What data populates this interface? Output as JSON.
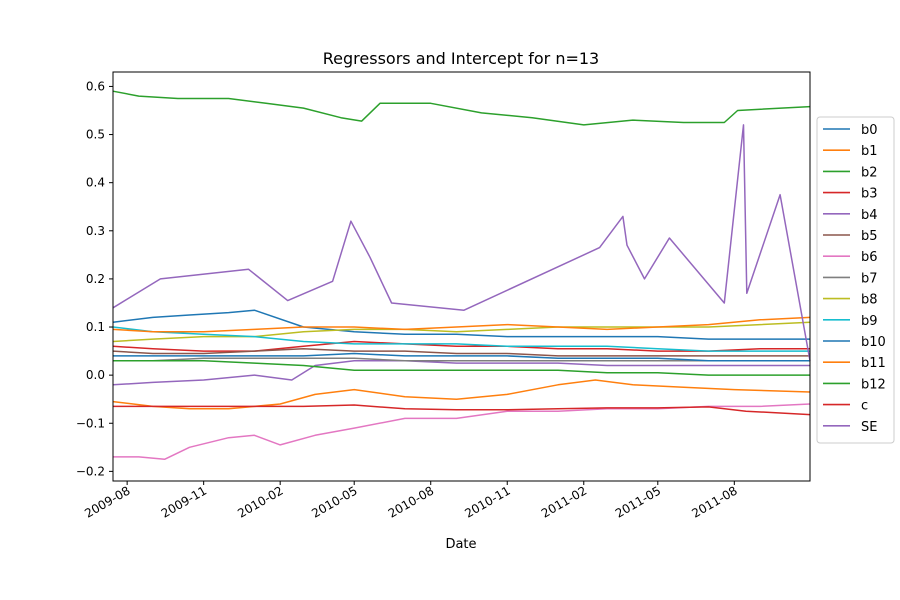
{
  "chart_data": {
    "type": "line",
    "title": "Regressors and Intercept for n=13",
    "xlabel": "Date",
    "ylabel": "",
    "x_range": [
      "2009-07-15",
      "2011-10-31"
    ],
    "ylim": [
      -0.22,
      0.63
    ],
    "y_ticks": [
      -0.2,
      -0.1,
      0.0,
      0.1,
      0.2,
      0.3,
      0.4,
      0.5,
      0.6
    ],
    "y_tick_labels": [
      "−0.2",
      "−0.1",
      "0.0",
      "0.1",
      "0.2",
      "0.3",
      "0.4",
      "0.5",
      "0.6"
    ],
    "x_ticks": [
      "2009-08-01",
      "2009-11-01",
      "2010-02-01",
      "2010-05-01",
      "2010-08-01",
      "2010-11-01",
      "2011-02-01",
      "2011-05-01",
      "2011-08-01"
    ],
    "x_tick_labels": [
      "2009-08",
      "2009-11",
      "2010-02",
      "2010-05",
      "2010-08",
      "2010-11",
      "2011-02",
      "2011-05",
      "2011-08"
    ],
    "grid": false,
    "legend_position": "right",
    "series": [
      {
        "name": "b0",
        "color": "#1f77b4",
        "x": [
          "2009-07-15",
          "2009-09-01",
          "2009-10-15",
          "2009-12-01",
          "2010-01-01",
          "2010-03-01",
          "2010-05-01",
          "2010-07-01",
          "2010-09-01",
          "2010-11-01",
          "2011-01-01",
          "2011-03-01",
          "2011-05-01",
          "2011-07-01",
          "2011-09-01",
          "2011-10-31"
        ],
        "y": [
          0.11,
          0.12,
          0.125,
          0.13,
          0.135,
          0.1,
          0.09,
          0.085,
          0.085,
          0.08,
          0.08,
          0.08,
          0.08,
          0.075,
          0.075,
          0.075
        ]
      },
      {
        "name": "b1",
        "color": "#ff7f0e",
        "x": [
          "2009-07-15",
          "2009-09-01",
          "2009-10-15",
          "2009-12-01",
          "2010-02-01",
          "2010-03-15",
          "2010-05-01",
          "2010-07-01",
          "2010-09-01",
          "2010-11-01",
          "2011-01-01",
          "2011-02-15",
          "2011-04-01",
          "2011-06-01",
          "2011-08-01",
          "2011-10-31"
        ],
        "y": [
          -0.055,
          -0.065,
          -0.07,
          -0.07,
          -0.06,
          -0.04,
          -0.03,
          -0.045,
          -0.05,
          -0.04,
          -0.02,
          -0.01,
          -0.02,
          -0.025,
          -0.03,
          -0.035
        ]
      },
      {
        "name": "b2",
        "color": "#2ca02c",
        "x": [
          "2009-07-15",
          "2009-08-15",
          "2009-10-01",
          "2009-12-01",
          "2010-01-15",
          "2010-03-01",
          "2010-04-15",
          "2010-05-10",
          "2010-06-01",
          "2010-08-01",
          "2010-10-01",
          "2010-12-01",
          "2011-02-01",
          "2011-04-01",
          "2011-06-01",
          "2011-07-20",
          "2011-08-05",
          "2011-10-31"
        ],
        "y": [
          0.59,
          0.58,
          0.575,
          0.575,
          0.565,
          0.555,
          0.535,
          0.528,
          0.565,
          0.565,
          0.545,
          0.535,
          0.52,
          0.53,
          0.525,
          0.525,
          0.55,
          0.558
        ]
      },
      {
        "name": "b3",
        "color": "#d62728",
        "x": [
          "2009-07-15",
          "2009-09-01",
          "2009-11-01",
          "2010-01-01",
          "2010-03-01",
          "2010-05-01",
          "2010-07-01",
          "2010-09-01",
          "2010-11-01",
          "2011-01-01",
          "2011-03-01",
          "2011-05-01",
          "2011-07-01",
          "2011-09-01",
          "2011-10-31"
        ],
        "y": [
          0.06,
          0.055,
          0.05,
          0.05,
          0.06,
          0.07,
          0.065,
          0.06,
          0.06,
          0.055,
          0.055,
          0.05,
          0.05,
          0.055,
          0.055
        ]
      },
      {
        "name": "b4",
        "color": "#9467bd",
        "x": [
          "2009-07-15",
          "2009-09-01",
          "2009-11-01",
          "2010-01-01",
          "2010-02-15",
          "2010-03-15",
          "2010-05-01",
          "2010-07-01",
          "2010-09-01",
          "2010-11-01",
          "2011-01-01",
          "2011-03-01",
          "2011-05-01",
          "2011-07-01",
          "2011-09-01",
          "2011-10-31"
        ],
        "y": [
          -0.02,
          -0.015,
          -0.01,
          0.0,
          -0.01,
          0.02,
          0.03,
          0.03,
          0.025,
          0.025,
          0.025,
          0.02,
          0.02,
          0.02,
          0.02,
          0.02
        ]
      },
      {
        "name": "b5",
        "color": "#8c564b",
        "x": [
          "2009-07-15",
          "2009-09-01",
          "2009-11-01",
          "2010-01-01",
          "2010-03-01",
          "2010-05-01",
          "2010-07-01",
          "2010-09-01",
          "2010-11-01",
          "2011-01-01",
          "2011-03-01",
          "2011-05-01",
          "2011-07-01",
          "2011-09-01",
          "2011-10-31"
        ],
        "y": [
          0.05,
          0.045,
          0.045,
          0.05,
          0.055,
          0.05,
          0.05,
          0.045,
          0.045,
          0.04,
          0.04,
          0.04,
          0.04,
          0.04,
          0.04
        ]
      },
      {
        "name": "b6",
        "color": "#e377c2",
        "x": [
          "2009-07-15",
          "2009-08-15",
          "2009-09-15",
          "2009-10-15",
          "2009-12-01",
          "2010-01-01",
          "2010-02-01",
          "2010-03-15",
          "2010-05-01",
          "2010-07-01",
          "2010-09-01",
          "2010-11-01",
          "2011-01-01",
          "2011-03-01",
          "2011-05-01",
          "2011-07-01",
          "2011-09-01",
          "2011-10-31"
        ],
        "y": [
          -0.17,
          -0.17,
          -0.175,
          -0.15,
          -0.13,
          -0.125,
          -0.145,
          -0.125,
          -0.11,
          -0.09,
          -0.09,
          -0.075,
          -0.075,
          -0.07,
          -0.07,
          -0.065,
          -0.065,
          -0.06
        ]
      },
      {
        "name": "b7",
        "color": "#7f7f7f",
        "x": [
          "2009-07-15",
          "2009-09-01",
          "2009-11-01",
          "2010-01-01",
          "2010-03-01",
          "2010-05-01",
          "2010-07-01",
          "2010-09-01",
          "2010-11-01",
          "2011-01-01",
          "2011-03-01",
          "2011-05-01",
          "2011-07-01",
          "2011-09-01",
          "2011-10-31"
        ],
        "y": [
          0.03,
          0.03,
          0.035,
          0.035,
          0.035,
          0.035,
          0.03,
          0.03,
          0.03,
          0.03,
          0.03,
          0.03,
          0.03,
          0.03,
          0.03
        ]
      },
      {
        "name": "b8",
        "color": "#bcbd22",
        "x": [
          "2009-07-15",
          "2009-09-01",
          "2009-11-01",
          "2010-01-01",
          "2010-03-01",
          "2010-05-01",
          "2010-07-01",
          "2010-09-01",
          "2010-11-01",
          "2011-01-01",
          "2011-03-01",
          "2011-05-01",
          "2011-07-01",
          "2011-09-01",
          "2011-10-31"
        ],
        "y": [
          0.07,
          0.075,
          0.08,
          0.08,
          0.09,
          0.095,
          0.095,
          0.09,
          0.095,
          0.1,
          0.1,
          0.1,
          0.1,
          0.105,
          0.11
        ]
      },
      {
        "name": "b9",
        "color": "#17becf",
        "x": [
          "2009-07-15",
          "2009-09-01",
          "2009-11-01",
          "2010-01-01",
          "2010-03-01",
          "2010-05-01",
          "2010-07-01",
          "2010-09-01",
          "2010-11-01",
          "2011-01-01",
          "2011-03-01",
          "2011-05-01",
          "2011-07-01",
          "2011-09-01",
          "2011-10-31"
        ],
        "y": [
          0.1,
          0.09,
          0.085,
          0.08,
          0.07,
          0.065,
          0.065,
          0.065,
          0.06,
          0.06,
          0.06,
          0.055,
          0.05,
          0.05,
          0.05
        ]
      },
      {
        "name": "b10",
        "color": "#1f77b4",
        "x": [
          "2009-07-15",
          "2009-09-01",
          "2009-11-01",
          "2010-01-01",
          "2010-03-01",
          "2010-05-01",
          "2010-07-01",
          "2010-09-01",
          "2010-11-01",
          "2011-01-01",
          "2011-03-01",
          "2011-05-01",
          "2011-07-01",
          "2011-09-01",
          "2011-10-31"
        ],
        "y": [
          0.04,
          0.04,
          0.04,
          0.04,
          0.04,
          0.045,
          0.04,
          0.04,
          0.04,
          0.035,
          0.035,
          0.035,
          0.03,
          0.03,
          0.03
        ]
      },
      {
        "name": "b11",
        "color": "#ff7f0e",
        "x": [
          "2009-07-15",
          "2009-09-01",
          "2009-11-01",
          "2010-01-01",
          "2010-03-01",
          "2010-05-01",
          "2010-07-01",
          "2010-09-01",
          "2010-11-01",
          "2011-01-01",
          "2011-03-01",
          "2011-05-01",
          "2011-07-01",
          "2011-09-01",
          "2011-10-31"
        ],
        "y": [
          0.095,
          0.09,
          0.09,
          0.095,
          0.1,
          0.1,
          0.095,
          0.1,
          0.105,
          0.1,
          0.095,
          0.1,
          0.105,
          0.115,
          0.12
        ]
      },
      {
        "name": "b12",
        "color": "#2ca02c",
        "x": [
          "2009-07-15",
          "2009-09-01",
          "2009-11-01",
          "2010-01-01",
          "2010-03-01",
          "2010-05-01",
          "2010-07-01",
          "2010-09-01",
          "2010-11-01",
          "2011-01-01",
          "2011-03-01",
          "2011-05-01",
          "2011-07-01",
          "2011-09-01",
          "2011-10-31"
        ],
        "y": [
          0.03,
          0.03,
          0.03,
          0.025,
          0.02,
          0.01,
          0.01,
          0.01,
          0.01,
          0.01,
          0.005,
          0.005,
          0.0,
          0.0,
          0.0
        ]
      },
      {
        "name": "c",
        "color": "#d62728",
        "x": [
          "2009-07-15",
          "2009-09-01",
          "2009-11-01",
          "2010-01-01",
          "2010-03-01",
          "2010-05-01",
          "2010-07-01",
          "2010-09-01",
          "2010-11-01",
          "2011-01-01",
          "2011-03-01",
          "2011-05-01",
          "2011-07-01",
          "2011-08-15",
          "2011-10-31"
        ],
        "y": [
          -0.065,
          -0.065,
          -0.065,
          -0.065,
          -0.065,
          -0.062,
          -0.07,
          -0.072,
          -0.072,
          -0.07,
          -0.068,
          -0.068,
          -0.066,
          -0.075,
          -0.082
        ]
      },
      {
        "name": "SE",
        "color": "#9467bd",
        "x": [
          "2009-07-15",
          "2009-09-10",
          "2009-12-25",
          "2010-02-10",
          "2010-04-05",
          "2010-04-27",
          "2010-05-20",
          "2010-06-15",
          "2010-09-10",
          "2011-02-20",
          "2011-03-20",
          "2011-03-25",
          "2011-04-15",
          "2011-05-15",
          "2011-07-20",
          "2011-08-12",
          "2011-08-16",
          "2011-09-25",
          "2011-10-31"
        ],
        "y": [
          0.14,
          0.2,
          0.22,
          0.155,
          0.195,
          0.32,
          0.245,
          0.15,
          0.135,
          0.265,
          0.33,
          0.27,
          0.2,
          0.285,
          0.15,
          0.52,
          0.17,
          0.375,
          0.03
        ]
      }
    ]
  }
}
